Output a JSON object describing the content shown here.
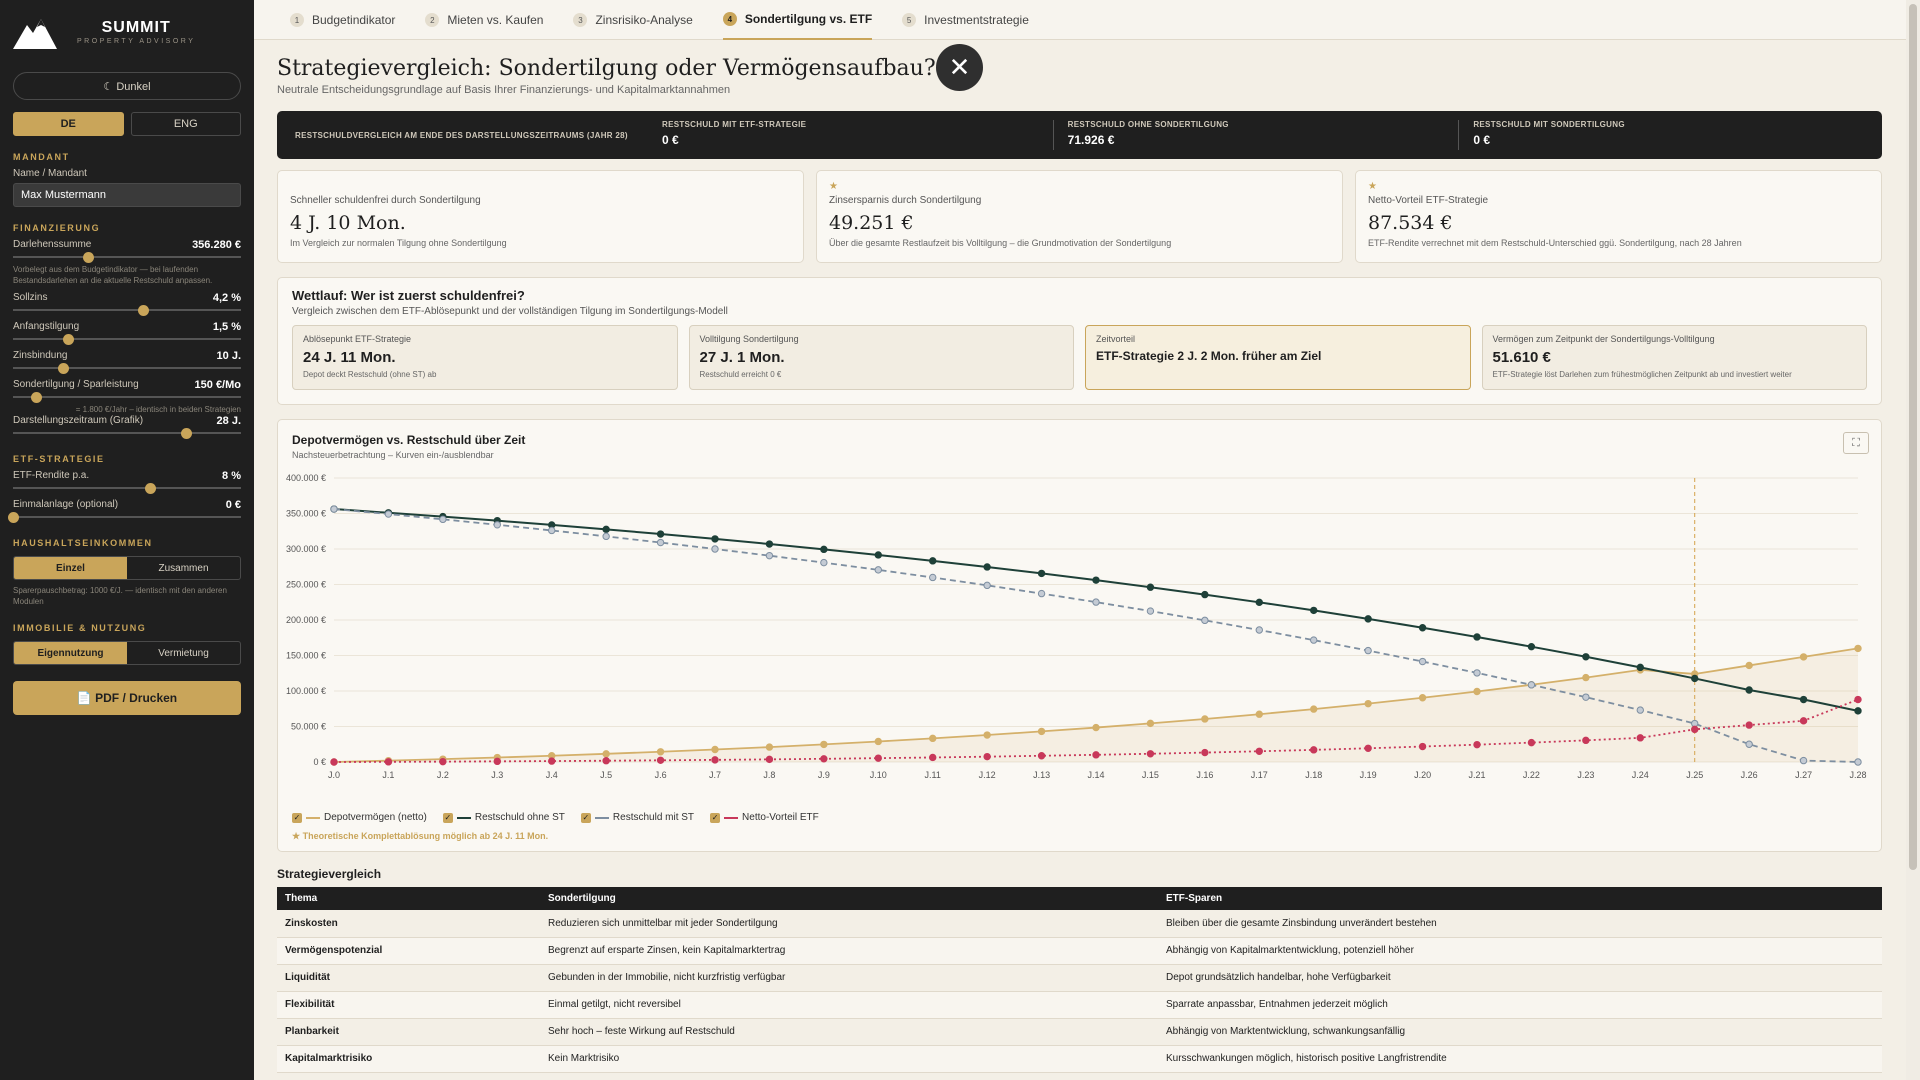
{
  "brand": {
    "title": "SUMMIT",
    "subtitle": "PROPERTY ADVISORY"
  },
  "theme_toggle": "☾ Dunkel",
  "lang": [
    "DE",
    "ENG"
  ],
  "sidebar": {
    "mandant_title": "MANDANT",
    "name_label": "Name / Mandant",
    "name_value": "Max Mustermann",
    "fin_title": "FINANZIERUNG",
    "darlehen": {
      "label": "Darlehenssumme",
      "value": "356.280 €",
      "pos": 0.33
    },
    "darlehen_note": "Vorbelegt aus dem Budgetindikator — bei laufenden Bestandsdarlehen an die aktuelle Restschuld anpassen.",
    "sollzins": {
      "label": "Sollzins",
      "value": "4,2 %",
      "pos": 0.57
    },
    "tilgung": {
      "label": "Anfangstilgung",
      "value": "1,5 %",
      "pos": 0.24
    },
    "zinsbindung": {
      "label": "Zinsbindung",
      "value": "10 J.",
      "pos": 0.22
    },
    "sonder": {
      "label": "Sondertilgung / Sparleistung",
      "value": "150 €/Mo",
      "pos": 0.1
    },
    "sonder_note": "= 1.800 €/Jahr – identisch in beiden Strategien",
    "zeitraum": {
      "label": "Darstellungszeitraum (Grafik)",
      "value": "28 J.",
      "pos": 0.76
    },
    "etf_title": "ETF-STRATEGIE",
    "rendite": {
      "label": "ETF-Rendite p.a.",
      "value": "8 %",
      "pos": 0.6
    },
    "einmal": {
      "label": "Einmalanlage (optional)",
      "value": "0 €",
      "pos": 0.0
    },
    "haushalt_title": "HAUSHALTSEINKOMMEN",
    "haushalt": [
      "Einzel",
      "Zusammen"
    ],
    "haushalt_note": "Sparerpauschbetrag: 1000 €/J. — identisch mit den anderen Modulen",
    "immo_title": "IMMOBILIE & NUTZUNG",
    "immo": [
      "Eigennutzung",
      "Vermietung"
    ],
    "pdf": "📄 PDF / Drucken"
  },
  "tabs": [
    {
      "num": "1",
      "label": "Budgetindikator"
    },
    {
      "num": "2",
      "label": "Mieten vs. Kaufen"
    },
    {
      "num": "3",
      "label": "Zinsrisiko-Analyse"
    },
    {
      "num": "4",
      "label": "Sondertilgung vs. ETF"
    },
    {
      "num": "5",
      "label": "Investmentstrategie"
    }
  ],
  "page": {
    "title": "Strategievergleich: Sondertilgung oder Vermögensaufbau?",
    "subtitle": "Neutrale Entscheidungsgrundlage auf Basis Ihrer Finanzierungs- und Kapitalmarktannahmen",
    "close": "✕"
  },
  "darkbar": {
    "label": "RESTSCHULDVERGLEICH AM ENDE DES DARSTELLUNGSZEITRAUMS (JAHR 28)",
    "cells": [
      {
        "t": "RESTSCHULD MIT ETF-STRATEGIE",
        "v": "0 €"
      },
      {
        "t": "RESTSCHULD OHNE SONDERTILGUNG",
        "v": "71.926 €"
      },
      {
        "t": "RESTSCHULD MIT SONDERTILGUNG",
        "v": "0 €"
      }
    ]
  },
  "cards": [
    {
      "star": "",
      "t": "Schneller schuldenfrei durch Sondertilgung",
      "v": "4 J. 10 Mon.",
      "d": "Im Vergleich zur normalen Tilgung ohne Sondertilgung"
    },
    {
      "star": "★",
      "t": "Zinsersparnis durch Sondertilgung",
      "v": "49.251 €",
      "d": "Über die gesamte Restlaufzeit bis Volltilgung – die Grundmotivation der Sondertilgung"
    },
    {
      "star": "★",
      "t": "Netto-Vorteil ETF-Strategie",
      "v": "87.534 €",
      "d": "ETF-Rendite verrechnet mit dem Restschuld-Unterschied ggü. Sondertilgung, nach 28 Jahren"
    }
  ],
  "race": {
    "title": "Wettlauf: Wer ist zuerst schuldenfrei?",
    "sub": "Vergleich zwischen dem ETF-Ablösepunkt und der vollständigen Tilgung im Sondertilgungs-Modell",
    "boxes": [
      {
        "t": "Ablösepunkt ETF-Strategie",
        "v": "24 J. 11 Mon.",
        "d": "Depot deckt Restschuld (ohne ST) ab"
      },
      {
        "t": "Volltilgung Sondertilgung",
        "v": "27 J. 1 Mon.",
        "d": "Restschuld erreicht 0 €"
      },
      {
        "t": "Zeitvorteil",
        "v": "ETF-Strategie 2 J. 2 Mon. früher am Ziel",
        "d": ""
      },
      {
        "t": "Vermögen zum Zeitpunkt der Sondertilgungs-Volltilgung",
        "v": "51.610 €",
        "d": "ETF-Strategie löst Darlehen zum frühestmöglichen Zeitpunkt ab und investiert weiter"
      }
    ]
  },
  "chart": {
    "title": "Depotvermögen vs. Restschuld über Zeit",
    "sub": "Nachsteuerbetrachtung – Kurven ein-/ausblendbar",
    "note": "★ Theoretische Komplettablösung möglich ab 24 J. 11 Mon.",
    "expand": "⛶",
    "legend": [
      {
        "name": "Depotvermögen (netto)",
        "color": "#d4b06a"
      },
      {
        "name": "Restschuld ohne ST",
        "color": "#1e4038"
      },
      {
        "name": "Restschuld mit ST",
        "color": "#7d8ea0"
      },
      {
        "name": "Netto-Vorteil ETF",
        "color": "#c8385a"
      }
    ]
  },
  "chart_data": {
    "type": "line",
    "x": [
      "J.0",
      "J.1",
      "J.2",
      "J.3",
      "J.4",
      "J.5",
      "J.6",
      "J.7",
      "J.8",
      "J.9",
      "J.10",
      "J.11",
      "J.12",
      "J.13",
      "J.14",
      "J.15",
      "J.16",
      "J.17",
      "J.18",
      "J.19",
      "J.20",
      "J.21",
      "J.22",
      "J.23",
      "J.24",
      "J.25",
      "J.26",
      "J.27",
      "J.28"
    ],
    "yticks": [
      "0 €",
      "50.000 €",
      "100.000 €",
      "150.000 €",
      "200.000 €",
      "250.000 €",
      "300.000 €",
      "350.000 €",
      "400.000 €"
    ],
    "ylim": [
      0,
      400000
    ],
    "marker_x": 25,
    "series": [
      {
        "name": "Depotvermögen (netto)",
        "color": "#d4b06a",
        "dash": false,
        "values": [
          0,
          1900,
          4000,
          6300,
          8800,
          11500,
          14400,
          17600,
          21000,
          24800,
          28900,
          33300,
          38000,
          43100,
          48500,
          54400,
          60600,
          67300,
          74500,
          82200,
          90500,
          99300,
          108800,
          118900,
          129700,
          124000,
          136000,
          148000,
          160000
        ]
      },
      {
        "name": "Restschuld ohne ST",
        "color": "#1e4038",
        "dash": false,
        "values": [
          356280,
          351000,
          345600,
          339900,
          333900,
          327700,
          321100,
          314200,
          307000,
          299500,
          291600,
          283300,
          274700,
          265600,
          256100,
          246200,
          235800,
          224900,
          213500,
          201600,
          189100,
          176100,
          162400,
          148200,
          133300,
          117700,
          101400,
          88000,
          72000
        ]
      },
      {
        "name": "Restschuld mit ST",
        "color": "#7d8ea0",
        "dash": true,
        "values": [
          356280,
          349200,
          341800,
          334100,
          326100,
          317800,
          309100,
          300000,
          290600,
          280800,
          270600,
          259900,
          248800,
          237200,
          225200,
          212600,
          199500,
          185900,
          171700,
          156900,
          141500,
          125500,
          108700,
          91300,
          73100,
          54200,
          25000,
          2000,
          0
        ]
      },
      {
        "name": "Netto-Vorteil ETF",
        "color": "#c8385a",
        "dash": "dot",
        "values": [
          0,
          200,
          500,
          900,
          1300,
          1800,
          2400,
          3000,
          3700,
          4500,
          5400,
          6400,
          7500,
          8800,
          10100,
          11600,
          13300,
          15100,
          17100,
          19300,
          21800,
          24400,
          27300,
          30500,
          34000,
          46000,
          52000,
          58000,
          88000
        ]
      }
    ]
  },
  "table": {
    "title": "Strategievergleich",
    "headers": [
      "Thema",
      "Sondertilgung",
      "ETF-Sparen"
    ],
    "rows": [
      [
        "Zinskosten",
        "Reduzieren sich unmittelbar mit jeder Sondertilgung",
        "Bleiben über die gesamte Zinsbindung unverändert bestehen"
      ],
      [
        "Vermögenspotenzial",
        "Begrenzt auf ersparte Zinsen, kein Kapitalmarktertrag",
        "Abhängig von Kapitalmarktentwicklung, potenziell höher"
      ],
      [
        "Liquidität",
        "Gebunden in der Immobilie, nicht kurzfristig verfügbar",
        "Depot grundsätzlich handelbar, hohe Verfügbarkeit"
      ],
      [
        "Flexibilität",
        "Einmal getilgt, nicht reversibel",
        "Sparrate anpassbar, Entnahmen jederzeit möglich"
      ],
      [
        "Planbarkeit",
        "Sehr hoch – feste Wirkung auf Restschuld",
        "Abhängig von Marktentwicklung, schwankungsanfällig"
      ],
      [
        "Kapitalmarktrisiko",
        "Kein Marktrisiko",
        "Kursschwankungen möglich, historisch positive Langfristrendite"
      ]
    ]
  }
}
